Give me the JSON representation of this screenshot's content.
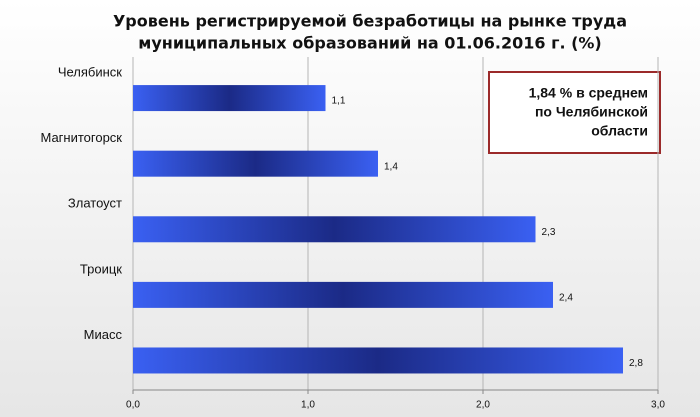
{
  "chart_data": {
    "type": "bar",
    "orientation": "horizontal",
    "title": [
      "Уровень регистрируемой безработицы на рынке труда",
      "муниципальных образований на 01.06.2016 г. (%)"
    ],
    "categories": [
      "Челябинск",
      "Магнитогорск",
      "Златоуст",
      "Троицк",
      "Миасс"
    ],
    "values": [
      1.1,
      1.4,
      2.3,
      2.4,
      2.8
    ],
    "value_labels": [
      "1,1",
      "1,4",
      "2,3",
      "2,4",
      "2,8"
    ],
    "color": "#3355ee",
    "xlim": [
      0,
      3
    ],
    "xticks": [
      {
        "value": 0,
        "label": "0,0"
      },
      {
        "value": 1,
        "label": "1,0"
      },
      {
        "value": 2,
        "label": "2,0"
      },
      {
        "value": 3,
        "label": "3,0"
      }
    ],
    "grid": true,
    "annotation": [
      "1,84 % в среднем",
      "по Челябинской",
      "области"
    ]
  }
}
